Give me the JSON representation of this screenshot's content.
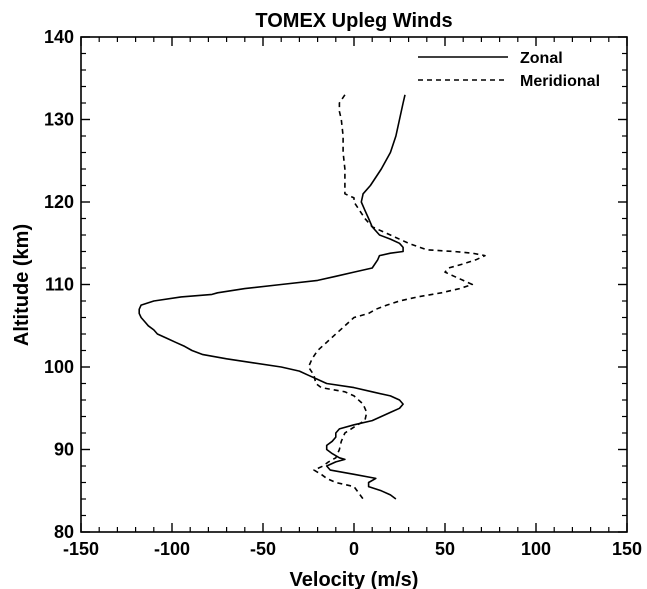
{
  "chart_data": {
    "type": "line",
    "title": "TOMEX Upleg Winds",
    "xlabel": "Velocity (m/s)",
    "ylabel": "Altitude (km)",
    "xlim": [
      -150,
      150
    ],
    "ylim": [
      80,
      140
    ],
    "x_ticks": [
      -150,
      -100,
      -50,
      0,
      50,
      100,
      150
    ],
    "y_ticks": [
      80,
      90,
      100,
      110,
      120,
      130,
      140
    ],
    "x_tick_labels": [
      "-150",
      "-100",
      "-50",
      "0",
      "50",
      "100",
      "150"
    ],
    "y_tick_labels": [
      "80",
      "90",
      "100",
      "110",
      "120",
      "130",
      "140"
    ],
    "grid": false,
    "legend_position": "top-right",
    "series": [
      {
        "name": "Zonal",
        "line_style": "solid",
        "color": "#000000",
        "points": [
          [
            28,
            133
          ],
          [
            27,
            132
          ],
          [
            25,
            130
          ],
          [
            23,
            128
          ],
          [
            20,
            126
          ],
          [
            15,
            124
          ],
          [
            9,
            122
          ],
          [
            5,
            121
          ],
          [
            4,
            120
          ],
          [
            6,
            119
          ],
          [
            8,
            118
          ],
          [
            10,
            117
          ],
          [
            14,
            116
          ],
          [
            20,
            115.5
          ],
          [
            25,
            115
          ],
          [
            27,
            114.5
          ],
          [
            27,
            114
          ],
          [
            20,
            113.8
          ],
          [
            14,
            113.5
          ],
          [
            13,
            113
          ],
          [
            10,
            112
          ],
          [
            0,
            111.5
          ],
          [
            -10,
            111
          ],
          [
            -20,
            110.5
          ],
          [
            -40,
            110
          ],
          [
            -60,
            109.5
          ],
          [
            -75,
            109
          ],
          [
            -78,
            108.8
          ],
          [
            -95,
            108.5
          ],
          [
            -110,
            108
          ],
          [
            -117,
            107.5
          ],
          [
            -118,
            107
          ],
          [
            -118,
            106.5
          ],
          [
            -117,
            106
          ],
          [
            -115,
            105.5
          ],
          [
            -113,
            105
          ],
          [
            -110,
            104.5
          ],
          [
            -108,
            104
          ],
          [
            -103,
            103.5
          ],
          [
            -98,
            103
          ],
          [
            -93,
            102.5
          ],
          [
            -89,
            102
          ],
          [
            -83,
            101.5
          ],
          [
            -70,
            101
          ],
          [
            -55,
            100.5
          ],
          [
            -40,
            100
          ],
          [
            -30,
            99.5
          ],
          [
            -25,
            99
          ],
          [
            -20,
            98.5
          ],
          [
            -15,
            98
          ],
          [
            0,
            97.5
          ],
          [
            10,
            97
          ],
          [
            20,
            96.5
          ],
          [
            25,
            96
          ],
          [
            27,
            95.5
          ],
          [
            25,
            95
          ],
          [
            20,
            94.5
          ],
          [
            15,
            94
          ],
          [
            10,
            93.5
          ],
          [
            0,
            93
          ],
          [
            -8,
            92.5
          ],
          [
            -10,
            92
          ],
          [
            -10,
            91.5
          ],
          [
            -12,
            91
          ],
          [
            -15,
            90.5
          ],
          [
            -15,
            90
          ],
          [
            -12,
            89.5
          ],
          [
            -8,
            89
          ],
          [
            -5,
            88.8
          ],
          [
            -10,
            88.5
          ],
          [
            -15,
            88
          ],
          [
            -13,
            87.5
          ],
          [
            0,
            87
          ],
          [
            12,
            86.5
          ],
          [
            8,
            86
          ],
          [
            8,
            85.5
          ],
          [
            15,
            85
          ],
          [
            20,
            84.5
          ],
          [
            23,
            84
          ]
        ]
      },
      {
        "name": "Meridional",
        "line_style": "dashed",
        "color": "#000000",
        "points": [
          [
            -5,
            133
          ],
          [
            -8,
            132
          ],
          [
            -8,
            131
          ],
          [
            -7,
            130
          ],
          [
            -6,
            128
          ],
          [
            -6,
            126
          ],
          [
            -5,
            124
          ],
          [
            -5,
            122
          ],
          [
            -5,
            121
          ],
          [
            0,
            120.5
          ],
          [
            0,
            120
          ],
          [
            3,
            119
          ],
          [
            6,
            118
          ],
          [
            10,
            117
          ],
          [
            20,
            116
          ],
          [
            30,
            115
          ],
          [
            40,
            114.2
          ],
          [
            55,
            114
          ],
          [
            65,
            113.8
          ],
          [
            72,
            113.5
          ],
          [
            67,
            113
          ],
          [
            60,
            112.5
          ],
          [
            52,
            112
          ],
          [
            50,
            111.5
          ],
          [
            55,
            111
          ],
          [
            60,
            110.5
          ],
          [
            65,
            110
          ],
          [
            58,
            109.5
          ],
          [
            48,
            109
          ],
          [
            35,
            108.5
          ],
          [
            25,
            108
          ],
          [
            18,
            107.5
          ],
          [
            12,
            107
          ],
          [
            8,
            106.5
          ],
          [
            0,
            106
          ],
          [
            -5,
            105
          ],
          [
            -10,
            104
          ],
          [
            -15,
            103
          ],
          [
            -20,
            102
          ],
          [
            -23,
            101
          ],
          [
            -25,
            100
          ],
          [
            -22,
            99
          ],
          [
            -21,
            98
          ],
          [
            -18,
            97.5
          ],
          [
            -5,
            97
          ],
          [
            0,
            96.5
          ],
          [
            5,
            95.5
          ],
          [
            7,
            94.5
          ],
          [
            6,
            93.5
          ],
          [
            2,
            93
          ],
          [
            -5,
            92
          ],
          [
            -7,
            91
          ],
          [
            -8,
            90
          ],
          [
            -10,
            89
          ],
          [
            -14,
            88.5
          ],
          [
            -17,
            88
          ],
          [
            -22,
            87.5
          ],
          [
            -18,
            87
          ],
          [
            -15,
            86.5
          ],
          [
            -10,
            86
          ],
          [
            0,
            85.5
          ],
          [
            5,
            84
          ]
        ]
      }
    ]
  }
}
